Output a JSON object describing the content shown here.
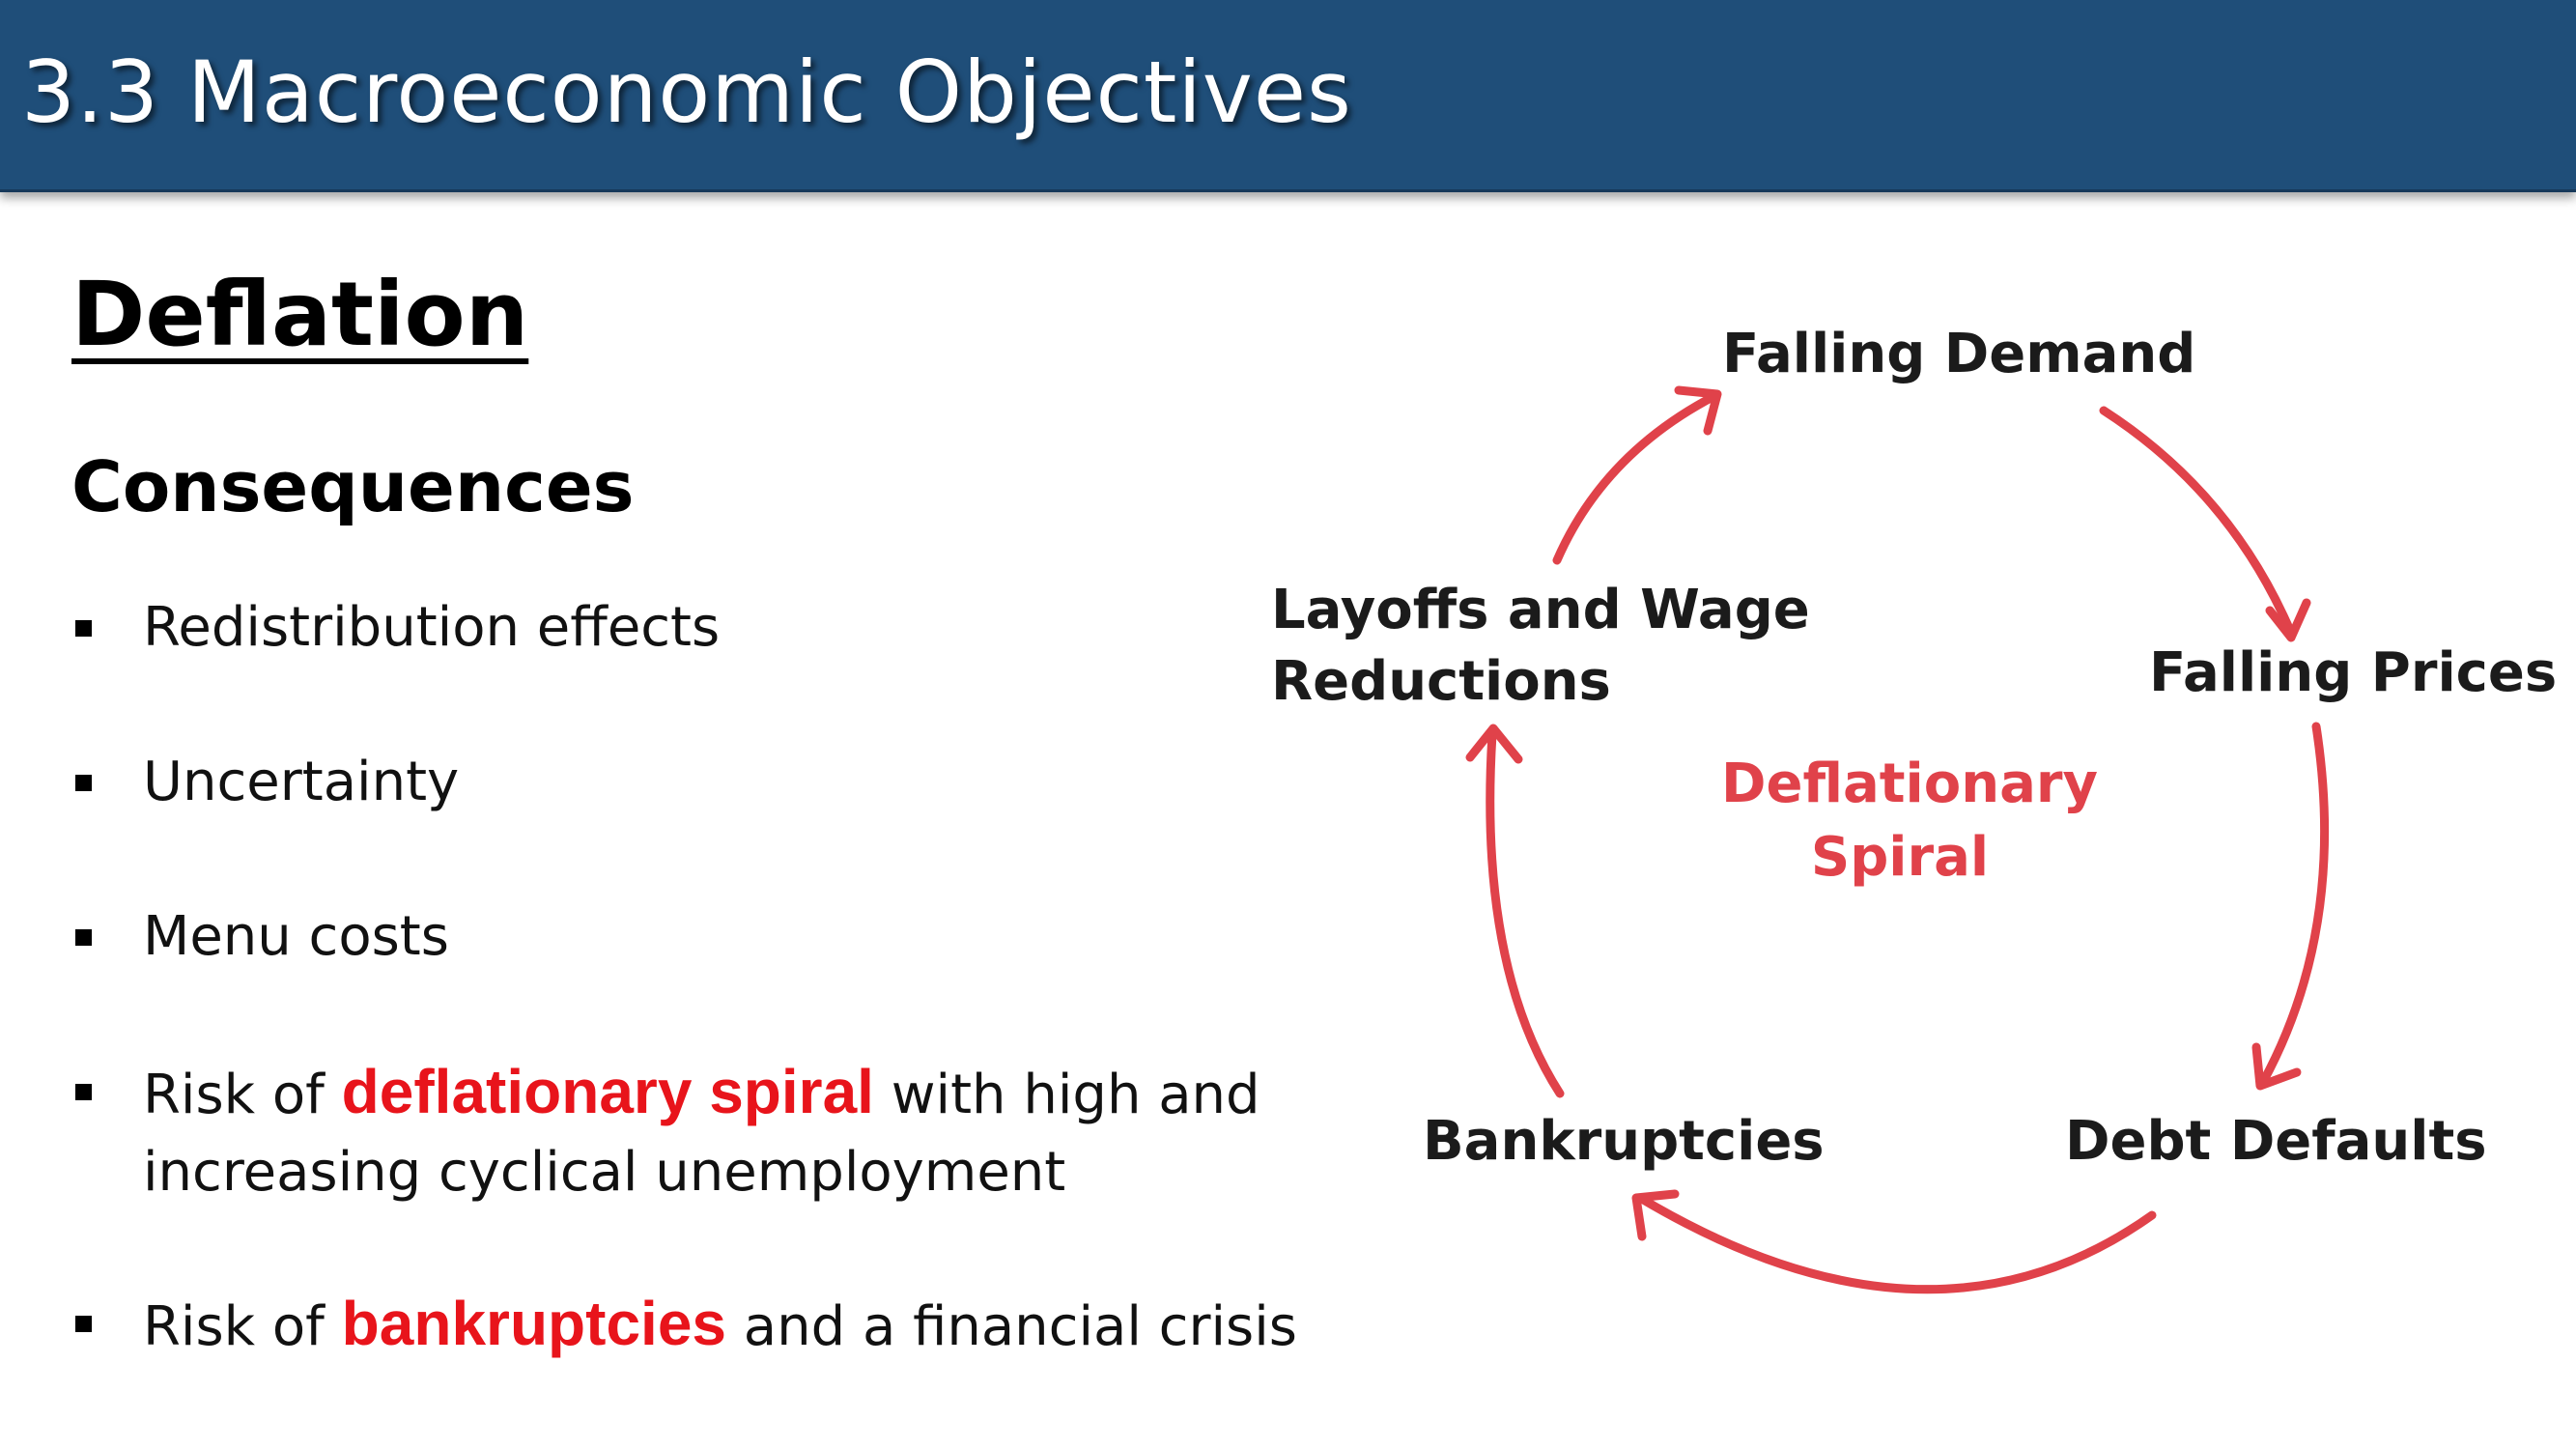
{
  "header": {
    "title": "3.3 Macroeconomic Objectives"
  },
  "content": {
    "heading": "Deflation",
    "subheading": "Consequences",
    "bullets": [
      {
        "text": "Redistribution effects"
      },
      {
        "text": "Uncertainty"
      },
      {
        "text": "Menu costs"
      },
      {
        "before": "Risk of ",
        "highlight": "deflationary spiral",
        "after": " with high and increasing cyclical unemployment"
      },
      {
        "before": "Risk of ",
        "highlight": "bankruptcies",
        "after": " and a financial crisis"
      }
    ]
  },
  "diagram": {
    "nodes": {
      "falling_demand": "Falling Demand",
      "falling_prices": "Falling Prices",
      "debt_defaults": "Debt Defaults",
      "bankruptcies": "Bankruptcies",
      "layoffs_line1": "Layoffs and Wage",
      "layoffs_line2": "Reductions"
    },
    "center": {
      "line1": "Deflationary",
      "line2": "Spiral"
    }
  },
  "colors": {
    "title_bar": "#1f4e79",
    "highlight": "#e8141b",
    "arrow": "#e0424a",
    "center_label": "#e0424a"
  }
}
